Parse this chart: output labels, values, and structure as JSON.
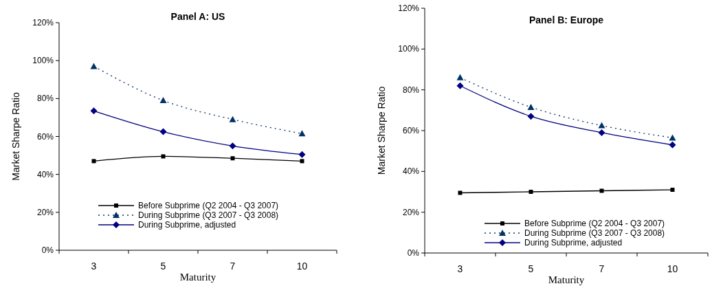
{
  "chart_data": [
    {
      "type": "line",
      "title": "Panel A: US",
      "xlabel": "Maturity",
      "ylabel": "Market Sharpe Ratio",
      "categories": [
        "3",
        "5",
        "7",
        "10"
      ],
      "ylim": [
        0,
        120
      ],
      "yticks": [
        {
          "value": 0,
          "label": "0%"
        },
        {
          "value": 20,
          "label": "20%"
        },
        {
          "value": 40,
          "label": "40%"
        },
        {
          "value": 60,
          "label": "60%"
        },
        {
          "value": 80,
          "label": "80%"
        },
        {
          "value": 100,
          "label": "100%"
        },
        {
          "value": 120,
          "label": "120%"
        }
      ],
      "grid": false,
      "legend": "bottom",
      "series": [
        {
          "name": "Before Subprime (Q2 2004 -  Q3 2007)",
          "color": "#000000",
          "marker": "square",
          "line_style": "solid",
          "values": [
            47,
            49.5,
            48.5,
            47
          ]
        },
        {
          "name": "During Subprime (Q3 2007 - Q3 2008)",
          "color": "#003366",
          "marker": "triangle",
          "line_style": "dotted",
          "values": [
            97,
            79,
            69,
            61.5
          ]
        },
        {
          "name": "During Subprime, adjusted",
          "color": "#000080",
          "marker": "diamond",
          "line_style": "solid",
          "values": [
            73.5,
            62.5,
            55,
            50.5
          ]
        }
      ]
    },
    {
      "type": "line",
      "title": "Panel B: Europe",
      "xlabel": "Maturity",
      "ylabel": "Market Sharpe Ratio",
      "categories": [
        "3",
        "5",
        "7",
        "10"
      ],
      "ylim": [
        0,
        120
      ],
      "yticks": [
        {
          "value": 0,
          "label": "0%"
        },
        {
          "value": 20,
          "label": "20%"
        },
        {
          "value": 40,
          "label": "40%"
        },
        {
          "value": 60,
          "label": "60%"
        },
        {
          "value": 80,
          "label": "80%"
        },
        {
          "value": 100,
          "label": "100%"
        },
        {
          "value": 120,
          "label": "120%"
        }
      ],
      "grid": false,
      "legend": "bottom",
      "series": [
        {
          "name": "Before Subprime (Q2 2004 -  Q3 2007)",
          "color": "#000000",
          "marker": "square",
          "line_style": "solid",
          "values": [
            29.5,
            30,
            30.5,
            31
          ]
        },
        {
          "name": "During Subprime (Q3 2007 - Q3 2008)",
          "color": "#003366",
          "marker": "triangle",
          "line_style": "dotted",
          "values": [
            86,
            71.5,
            62.5,
            56.5
          ]
        },
        {
          "name": "During Subprime, adjusted",
          "color": "#000080",
          "marker": "diamond",
          "line_style": "solid",
          "values": [
            82,
            67,
            59,
            53
          ]
        }
      ]
    }
  ]
}
